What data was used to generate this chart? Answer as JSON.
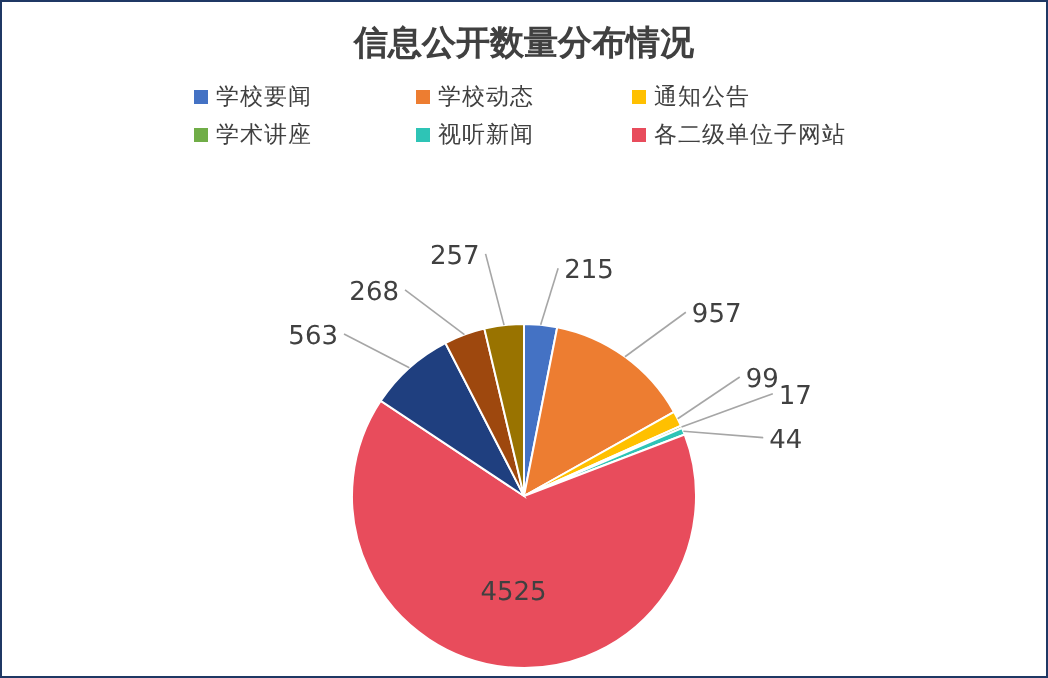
{
  "chart_data": {
    "type": "pie",
    "title": "信息公开数量分布情况",
    "categories": [
      "学校要闻",
      "学校动态",
      "通知公告",
      "学术讲座",
      "视听新闻",
      "各二级单位子网站",
      null,
      null,
      null
    ],
    "values": [
      215,
      957,
      99,
      17,
      44,
      4525,
      563,
      268,
      257
    ],
    "colors": [
      "#4472c4",
      "#ed7d31",
      "#ffc000",
      "#70ad47",
      "#2ec4b6",
      "#e84c5c",
      "#1f3f7f",
      "#9e480e",
      "#997300"
    ],
    "data_labels": true,
    "legend": "top"
  }
}
